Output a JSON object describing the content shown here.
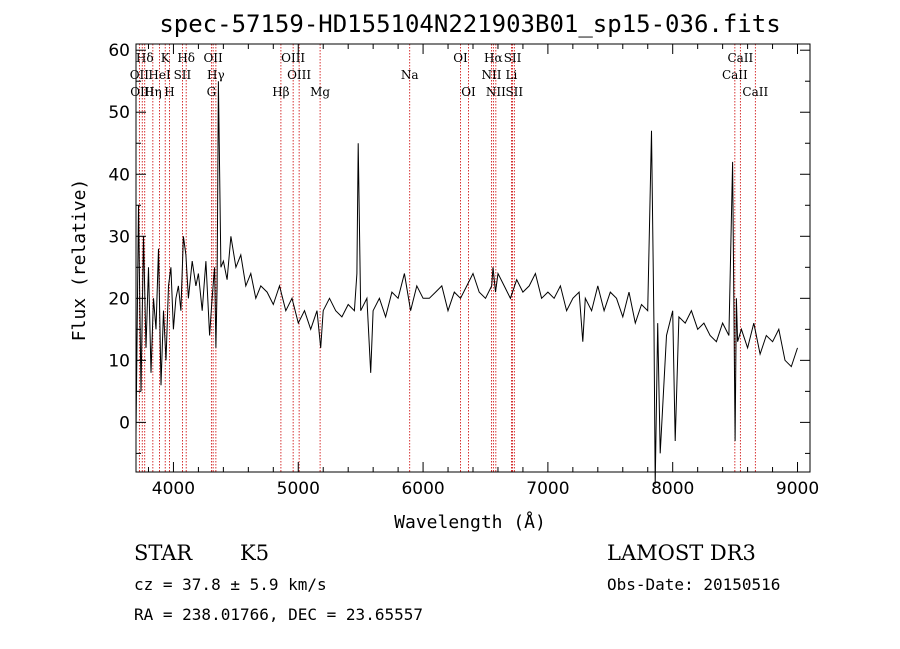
{
  "chart_data": {
    "type": "line",
    "title": "spec-57159-HD155104N221903B01_sp15-036.fits",
    "xlabel": "Wavelength (Å)",
    "ylabel": "Flux (relative)",
    "xlim": [
      3700,
      9100
    ],
    "ylim": [
      -8,
      61
    ],
    "xticks": [
      4000,
      5000,
      6000,
      7000,
      8000,
      9000
    ],
    "yticks": [
      0,
      10,
      20,
      30,
      40,
      50,
      60
    ],
    "grid": false,
    "legend": "none",
    "line_color": "#000000",
    "marker_color": "#cc0000",
    "series": [
      {
        "x": [
          3700,
          3720,
          3740,
          3760,
          3780,
          3800,
          3820,
          3840,
          3860,
          3880,
          3900,
          3920,
          3940,
          3960,
          3980,
          4000,
          4020,
          4040,
          4060,
          4080,
          4100,
          4120,
          4150,
          4180,
          4200,
          4230,
          4260,
          4290,
          4310,
          4330,
          4340,
          4350,
          4360,
          4380,
          4400,
          4430,
          4460,
          4500,
          4540,
          4580,
          4620,
          4660,
          4700,
          4750,
          4800,
          4850,
          4900,
          4950,
          5000,
          5050,
          5100,
          5150,
          5180,
          5200,
          5250,
          5300,
          5350,
          5400,
          5450,
          5470,
          5480,
          5500,
          5550,
          5580,
          5600,
          5650,
          5700,
          5750,
          5800,
          5850,
          5900,
          5950,
          6000,
          6050,
          6100,
          6150,
          6200,
          6250,
          6300,
          6350,
          6400,
          6450,
          6500,
          6550,
          6560,
          6580,
          6600,
          6650,
          6700,
          6750,
          6800,
          6850,
          6900,
          6950,
          7000,
          7050,
          7100,
          7150,
          7200,
          7250,
          7280,
          7300,
          7350,
          7400,
          7450,
          7500,
          7550,
          7600,
          7650,
          7700,
          7750,
          7800,
          7830,
          7850,
          7860,
          7880,
          7900,
          7950,
          8000,
          8020,
          8050,
          8100,
          8150,
          8200,
          8250,
          8300,
          8350,
          8400,
          8450,
          8480,
          8500,
          8510,
          8520,
          8550,
          8600,
          8650,
          8700,
          8750,
          8800,
          8850,
          8900,
          8950,
          9000
        ],
        "y": [
          -2,
          35,
          5,
          30,
          12,
          25,
          8,
          20,
          15,
          28,
          6,
          18,
          10,
          22,
          25,
          15,
          20,
          22,
          18,
          30,
          27,
          20,
          26,
          22,
          24,
          18,
          26,
          14,
          20,
          25,
          12,
          22,
          55,
          25,
          26,
          23,
          30,
          25,
          27,
          22,
          24,
          20,
          22,
          21,
          19,
          22,
          18,
          20,
          16,
          18,
          15,
          18,
          12,
          18,
          20,
          18,
          17,
          19,
          18,
          24,
          45,
          18,
          20,
          8,
          18,
          20,
          17,
          21,
          20,
          24,
          18,
          22,
          20,
          20,
          21,
          22,
          18,
          21,
          20,
          22,
          24,
          21,
          20,
          22,
          25,
          21,
          24,
          22,
          20,
          23,
          21,
          22,
          24,
          20,
          21,
          20,
          22,
          18,
          20,
          21,
          13,
          20,
          18,
          22,
          18,
          21,
          20,
          17,
          21,
          16,
          19,
          18,
          47,
          15,
          -10,
          16,
          -5,
          14,
          18,
          -3,
          17,
          16,
          18,
          15,
          16,
          14,
          13,
          16,
          14,
          42,
          -3,
          20,
          13,
          15,
          12,
          16,
          11,
          14,
          13,
          15,
          10,
          9,
          12
        ]
      }
    ],
    "line_markers": [
      {
        "label": "Hδ",
        "x": 3770,
        "row": 1
      },
      {
        "label": "K",
        "x": 3934,
        "row": 1
      },
      {
        "label": "Hδ",
        "x": 4102,
        "row": 1
      },
      {
        "label": "OII",
        "x": 4318,
        "row": 1
      },
      {
        "label": "OIII",
        "x": 4959,
        "row": 1
      },
      {
        "label": "OI",
        "x": 6300,
        "row": 1
      },
      {
        "label": "Hα",
        "x": 6563,
        "row": 1
      },
      {
        "label": "SII",
        "x": 6717,
        "row": 1
      },
      {
        "label": "CaII",
        "x": 8542,
        "row": 1
      },
      {
        "label": "OII",
        "x": 3727,
        "row": 2
      },
      {
        "label": "HeI",
        "x": 3889,
        "row": 2
      },
      {
        "label": "SII",
        "x": 4072,
        "row": 2
      },
      {
        "label": "Hγ",
        "x": 4340,
        "row": 2
      },
      {
        "label": "OIII",
        "x": 5007,
        "row": 2
      },
      {
        "label": "Na",
        "x": 5893,
        "row": 2
      },
      {
        "label": "NII",
        "x": 6548,
        "row": 2
      },
      {
        "label": "Li",
        "x": 6708,
        "row": 2
      },
      {
        "label": "CaII",
        "x": 8498,
        "row": 2
      },
      {
        "label": "OIII",
        "x": 3750,
        "row": 3
      },
      {
        "label": "Hη",
        "x": 3835,
        "row": 3
      },
      {
        "label": "H",
        "x": 3968,
        "row": 3
      },
      {
        "label": "G",
        "x": 4304,
        "row": 3
      },
      {
        "label": "Hβ",
        "x": 4861,
        "row": 3
      },
      {
        "label": "Mg",
        "x": 5175,
        "row": 3
      },
      {
        "label": "OI",
        "x": 6364,
        "row": 3
      },
      {
        "label": "NII",
        "x": 6583,
        "row": 3
      },
      {
        "label": "SII",
        "x": 6731,
        "row": 3
      },
      {
        "label": "CaII",
        "x": 8662,
        "row": 3
      }
    ]
  },
  "info": {
    "object_class": "STAR",
    "subclass": "K5",
    "survey": "LAMOST DR3",
    "redshift_line": "cz = 37.8 ± 5.9 km/s",
    "obs_date": "Obs-Date: 20150516",
    "coords": "RA = 238.01766, DEC =  23.65557"
  }
}
